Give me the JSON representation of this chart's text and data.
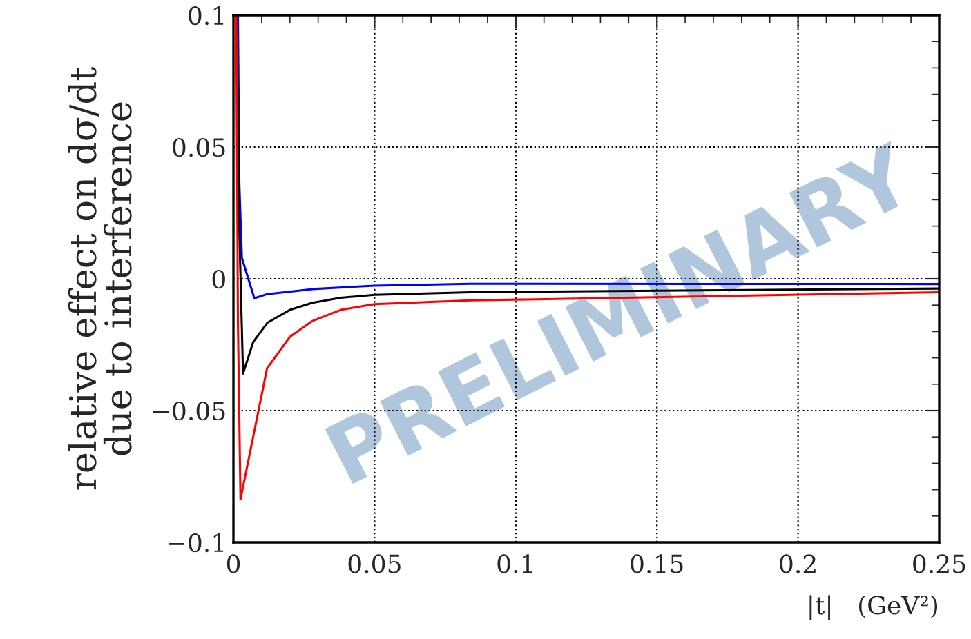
{
  "chart_data": {
    "type": "line",
    "xlabel": "|t|   (GeV²)",
    "ylabel": "relative effect on dσ/dt\ndue to interference",
    "xlim": [
      0,
      0.25
    ],
    "ylim": [
      -0.1,
      0.1
    ],
    "xticks": [
      0,
      0.05,
      0.1,
      0.15,
      0.2,
      0.25
    ],
    "yticks": [
      -0.1,
      -0.05,
      0,
      0.05,
      0.1
    ],
    "grid": true,
    "series": [
      {
        "color": "#0000ff",
        "x": [
          0.0016,
          0.0021,
          0.003,
          0.0074,
          0.012,
          0.028,
          0.05,
          0.0838,
          0.25
        ],
        "values": [
          0.1,
          0.036,
          0.0079,
          -0.0074,
          -0.0058,
          -0.0039,
          -0.0026,
          -0.0019,
          -0.002
        ]
      },
      {
        "color": "#000000",
        "x": [
          0.0013,
          0.0021,
          0.0034,
          0.007,
          0.012,
          0.02,
          0.028,
          0.038,
          0.05,
          0.0838,
          0.25
        ],
        "values": [
          0.1,
          0.018,
          -0.036,
          -0.024,
          -0.0167,
          -0.0118,
          -0.0091,
          -0.0072,
          -0.0061,
          -0.0051,
          -0.0037
        ]
      },
      {
        "color": "#ff0000",
        "x": [
          0.001,
          0.0016,
          0.0025,
          0.0119,
          0.02,
          0.028,
          0.038,
          0.05,
          0.0838,
          0.25
        ],
        "values": [
          0.1,
          -0.017,
          -0.0837,
          -0.034,
          -0.022,
          -0.016,
          -0.0118,
          -0.0096,
          -0.0082,
          -0.0051
        ]
      }
    ],
    "annotations": [
      "PRELIMINARY"
    ]
  }
}
